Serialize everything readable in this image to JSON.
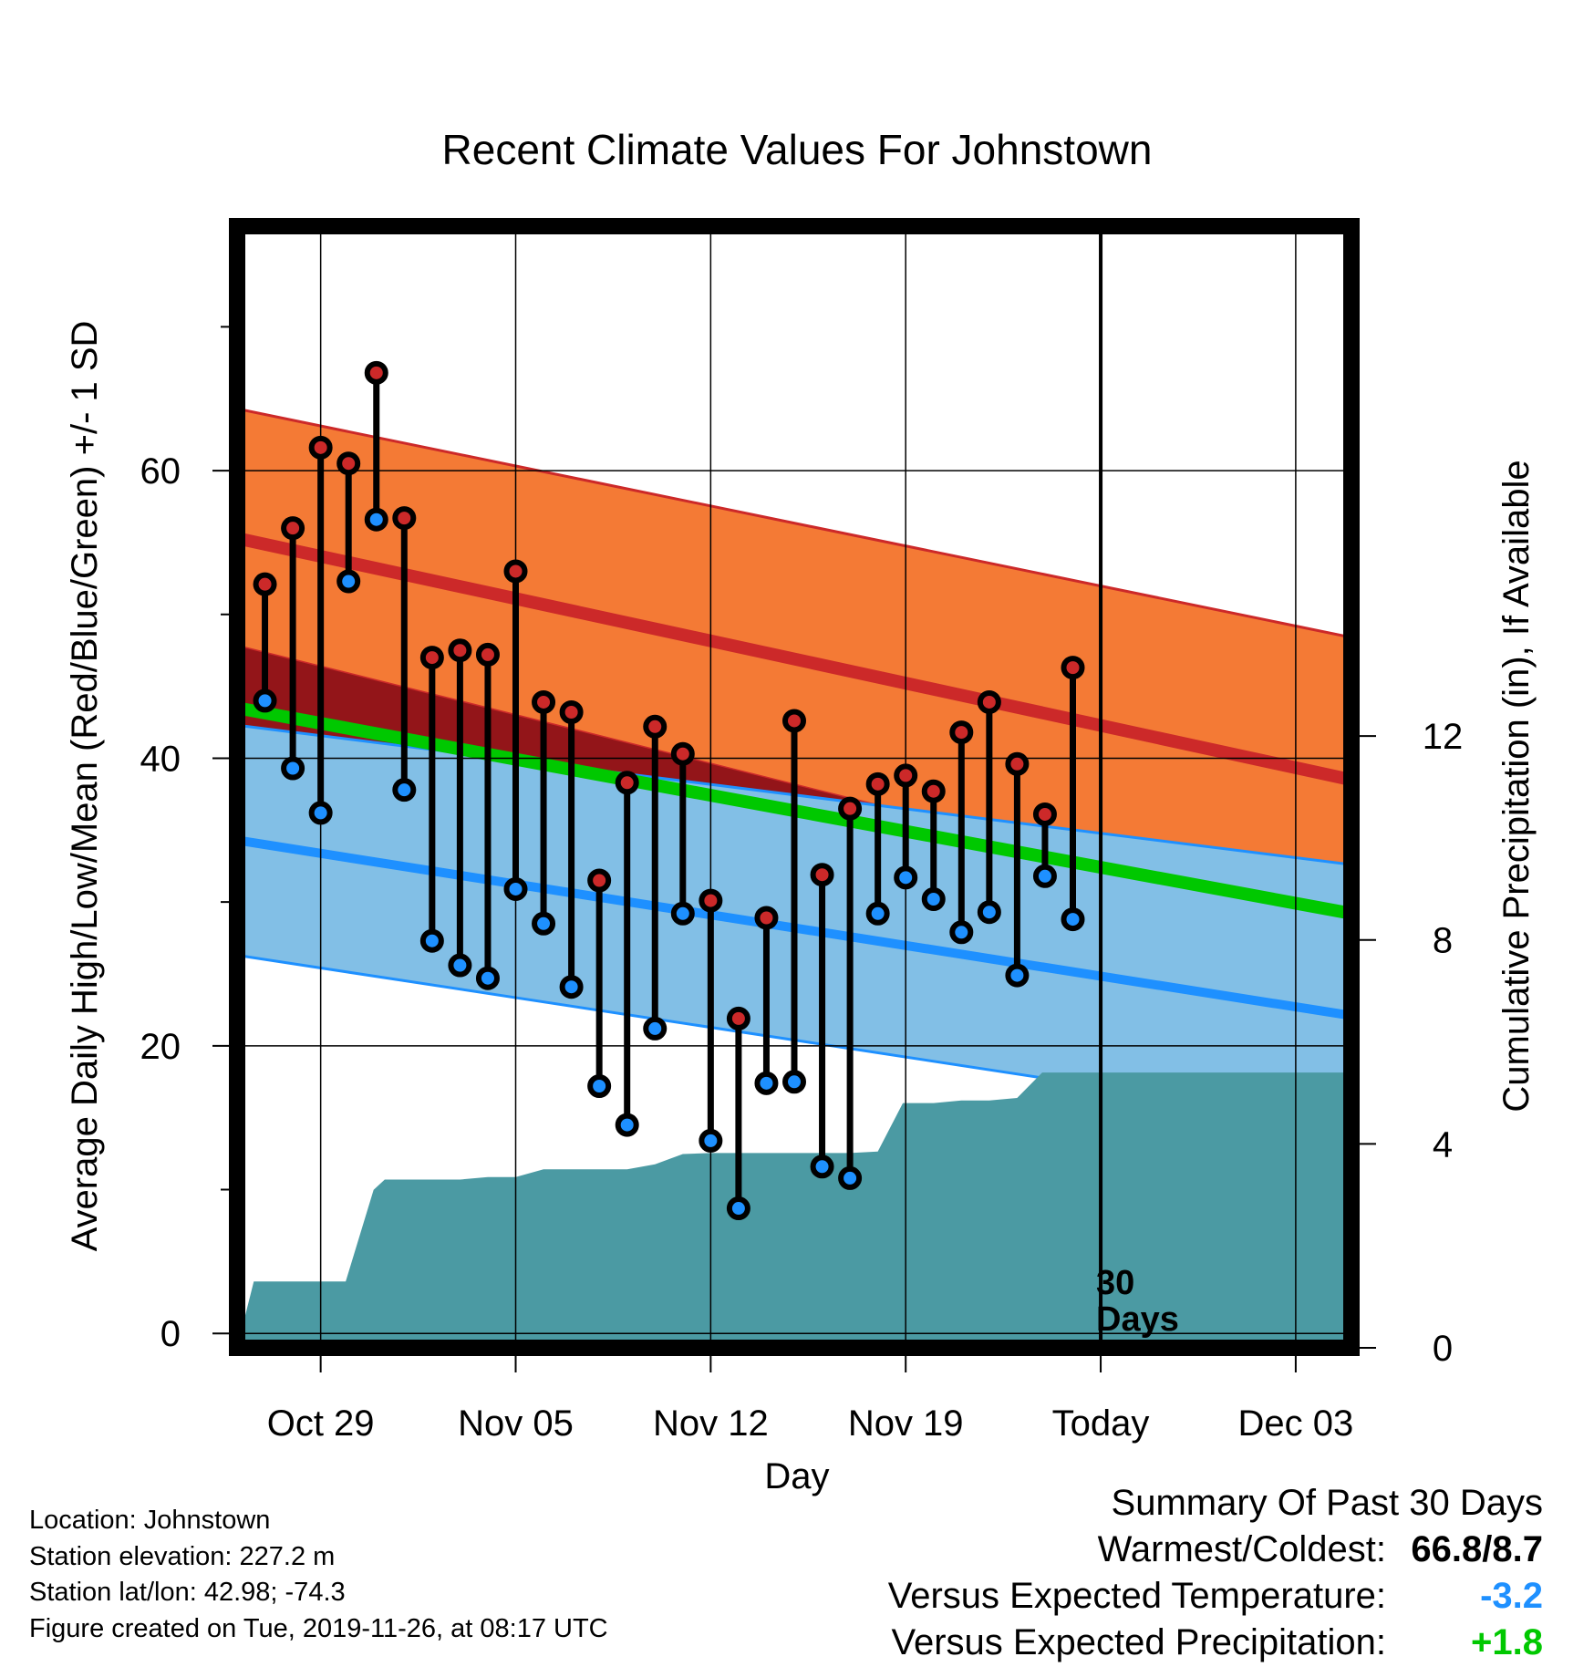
{
  "chart_data": {
    "type": "range",
    "title": "Recent Climate Values For Johnstown",
    "xlabel": "Day",
    "ylabel_left": "Average Daily High/Low/Mean (Red/Blue/Green) +/- 1 SD",
    "ylabel_right": "Cumulative Precipitation (in), If Available",
    "ylim_left": [
      -1,
      77
    ],
    "ylim_right": [
      0,
      22
    ],
    "xlim_days": [
      -1,
      39
    ],
    "left_ticks": [
      "0",
      "20",
      "40",
      "60"
    ],
    "left_tick_values": [
      0,
      20,
      40,
      60
    ],
    "left_minor_tick_values": [
      10,
      30,
      50,
      70
    ],
    "right_ticks": [
      "0",
      "4",
      "8",
      "12"
    ],
    "right_tick_values": [
      0,
      4,
      8,
      12
    ],
    "x_ticks": [
      "Oct 29",
      "Nov 05",
      "Nov 12",
      "Nov 19",
      "Today",
      "Dec 03"
    ],
    "x_tick_days": [
      2,
      9,
      16,
      23,
      30,
      37
    ],
    "today_day": 30,
    "today_label": [
      "30",
      "Days"
    ],
    "grid": true,
    "colors": {
      "high_band": "#f47a35",
      "high_mean": "#cc2929",
      "low_band": "#82bfe6",
      "low_mean": "#1e90ff",
      "mean_line": "#00c800",
      "overlap": "#931519",
      "precip": "#4b9aa3",
      "high_point": "#cc2929",
      "low_point": "#1e90ff",
      "stem": "#000000"
    },
    "normals": {
      "days": [
        -1,
        39
      ],
      "high_upper": [
        64.3,
        48.4
      ],
      "high_mean": [
        55.3,
        38.5
      ],
      "high_lower": [
        47.8,
        28.5
      ],
      "mean": [
        43.5,
        29.2
      ],
      "low_upper": [
        42.3,
        32.6
      ],
      "low_mean": [
        34.3,
        22.1
      ],
      "low_lower": [
        26.3,
        14.5
      ]
    },
    "observations": {
      "days": [
        0,
        1,
        2,
        3,
        4,
        5,
        6,
        7,
        8,
        9,
        10,
        11,
        12,
        13,
        14,
        15,
        16,
        17,
        18,
        19,
        20,
        21,
        22,
        23,
        24,
        25,
        26,
        27,
        28,
        29
      ],
      "high": [
        52.1,
        56.0,
        61.6,
        60.5,
        66.8,
        56.7,
        47.0,
        47.5,
        47.2,
        53.0,
        43.9,
        43.2,
        31.5,
        38.3,
        42.2,
        40.3,
        30.1,
        21.9,
        28.9,
        42.6,
        31.9,
        36.5,
        38.2,
        38.8,
        37.7,
        41.8,
        43.9,
        39.6,
        36.1,
        46.3
      ],
      "low": [
        44.0,
        39.3,
        36.2,
        52.3,
        56.6,
        37.8,
        27.3,
        25.6,
        24.7,
        30.9,
        28.5,
        24.1,
        17.2,
        14.5,
        21.2,
        29.2,
        13.4,
        8.7,
        17.4,
        17.5,
        11.6,
        10.8,
        29.2,
        31.7,
        30.2,
        27.9,
        29.3,
        24.9,
        31.8,
        28.8
      ]
    },
    "precip": {
      "days": [
        -1,
        -0.4,
        2,
        2.9,
        3.9,
        4.3,
        5,
        6,
        7,
        8,
        9,
        10,
        11,
        12,
        13,
        14,
        15,
        16,
        17,
        18,
        19,
        20,
        21,
        22,
        22.9,
        23.1,
        24,
        25,
        26,
        27,
        27.9,
        28.1,
        29,
        30,
        31,
        32,
        33,
        34,
        35,
        36,
        37,
        38,
        39
      ],
      "values": [
        0,
        1.3,
        1.3,
        1.3,
        3.1,
        3.3,
        3.3,
        3.3,
        3.3,
        3.35,
        3.35,
        3.5,
        3.5,
        3.5,
        3.5,
        3.6,
        3.8,
        3.82,
        3.82,
        3.82,
        3.82,
        3.82,
        3.82,
        3.85,
        4.8,
        4.8,
        4.8,
        4.85,
        4.85,
        4.9,
        5.4,
        5.4,
        5.4,
        5.4,
        5.4,
        5.4,
        5.4,
        5.4,
        5.4,
        5.4,
        5.4,
        5.4,
        5.4
      ]
    }
  },
  "info": {
    "location": "Location: Johnstown",
    "elevation": "Station elevation: 227.2 m",
    "latlon": "Station lat/lon: 42.98; -74.3",
    "created": "Figure created on Tue, 2019-11-26, at 08:17 UTC"
  },
  "summary": {
    "title": "Summary Of Past 30 Days",
    "warm_cold_label": "Warmest/Coldest:",
    "warm_cold_value": "66.8/8.7",
    "temp_label": "Versus Expected Temperature:",
    "temp_value": "-3.2",
    "temp_color": "#1e90ff",
    "precip_label": "Versus Expected Precipitation:",
    "precip_value": "+1.8",
    "precip_color": "#00c800"
  }
}
